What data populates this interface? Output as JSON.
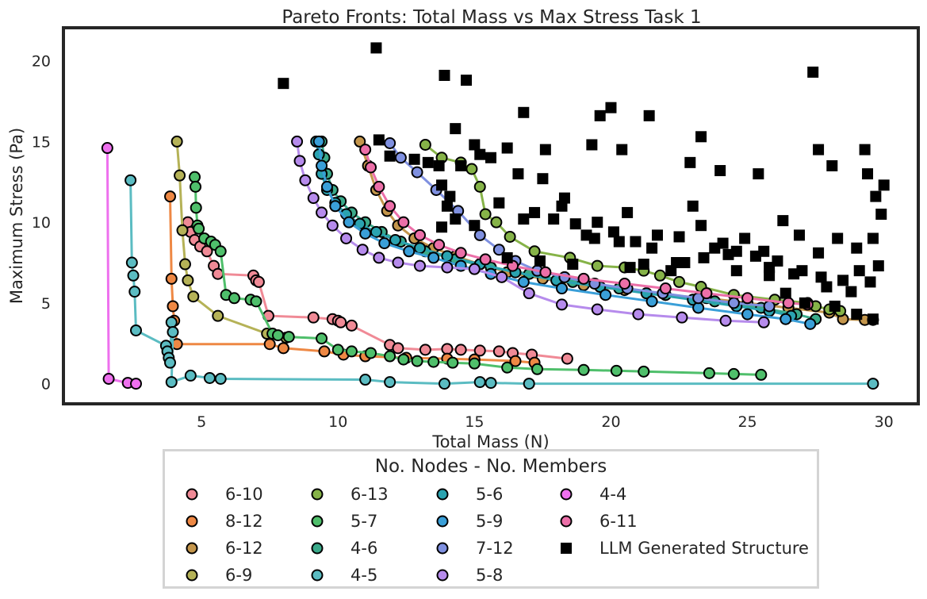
{
  "chart_data": {
    "type": "scatter",
    "title": "Pareto Fronts: Total Mass vs Max Stress Task 1",
    "xlabel": "Total Mass (N)",
    "ylabel": "Maximum Stress (Pa)",
    "xlim": [
      0.0,
      31.2
    ],
    "ylim": [
      -1.15,
      21.95
    ],
    "xticks": [
      5,
      10,
      15,
      20,
      25,
      30
    ],
    "yticks": [
      0,
      5,
      10,
      15,
      20
    ],
    "grid": false,
    "legend_title": "No. Nodes - No. Members",
    "legend_position": "below",
    "series": [
      {
        "name": "6-10",
        "color": "#f08a96",
        "x": [
          4.5,
          4.6,
          4.75,
          4.95,
          5.2,
          5.45,
          5.6,
          6.9,
          7.0,
          7.1,
          7.45,
          9.1,
          9.8,
          10.0,
          10.1,
          10.5,
          11.9,
          12.2,
          13.2,
          14.0,
          14.5,
          15.2,
          15.9,
          16.4,
          17.1,
          18.4
        ],
        "y": [
          10.0,
          9.4,
          8.9,
          8.5,
          8.2,
          7.3,
          6.8,
          6.7,
          6.4,
          6.3,
          4.2,
          4.1,
          4.0,
          3.9,
          3.8,
          3.6,
          2.4,
          2.2,
          2.1,
          2.15,
          2.1,
          2.05,
          2.0,
          1.9,
          1.8,
          1.55
        ]
      },
      {
        "name": "8-12",
        "color": "#ee8844",
        "x": [
          3.85,
          3.9,
          3.95,
          4.0,
          4.1,
          7.5,
          8.0,
          9.5,
          10.2,
          11.0,
          12.5,
          14.0,
          15.0,
          16.5,
          17.2
        ],
        "y": [
          11.6,
          6.5,
          4.8,
          3.9,
          2.45,
          2.45,
          2.2,
          2.0,
          1.8,
          1.7,
          1.6,
          1.55,
          1.5,
          1.4,
          1.3
        ]
      },
      {
        "name": "6-12",
        "color": "#c4964c",
        "x": [
          10.8,
          11.1,
          11.4,
          11.8,
          12.2,
          12.8,
          13.5,
          14.3,
          15.2,
          16.2,
          17.5,
          19.0,
          20.5,
          22.0,
          23.5,
          25.0,
          26.5,
          28.0,
          28.5,
          29.3,
          29.6
        ],
        "y": [
          15.0,
          13.5,
          12.0,
          10.7,
          9.8,
          9.0,
          8.4,
          7.9,
          7.4,
          6.9,
          6.5,
          6.1,
          5.8,
          5.5,
          5.3,
          5.0,
          4.7,
          4.4,
          4.0,
          3.95,
          3.95
        ]
      },
      {
        "name": "6-9",
        "color": "#b5b257",
        "x": [
          4.1,
          4.2,
          4.3,
          4.4,
          4.5,
          4.7,
          5.6,
          7.4,
          8.1
        ],
        "y": [
          15.0,
          12.9,
          9.5,
          7.4,
          6.4,
          5.4,
          4.2,
          3.1,
          2.85
        ]
      },
      {
        "name": "6-13",
        "color": "#86b348",
        "x": [
          13.2,
          13.8,
          14.5,
          14.9,
          15.2,
          15.4,
          15.8,
          16.3,
          17.2,
          18.5,
          19.5,
          20.5,
          21.2,
          21.8,
          22.5,
          23.3,
          24.5,
          26.0,
          27.2,
          27.5,
          28.0,
          28.4
        ],
        "y": [
          14.8,
          14.0,
          13.7,
          13.3,
          12.2,
          10.5,
          10.0,
          9.1,
          8.2,
          7.8,
          7.3,
          7.2,
          7.0,
          6.7,
          6.3,
          6.0,
          5.5,
          5.2,
          5.0,
          4.8,
          4.6,
          4.5
        ]
      },
      {
        "name": "5-7",
        "color": "#4fbf6b",
        "x": [
          4.75,
          4.78,
          4.8,
          4.85,
          4.9,
          5.1,
          5.35,
          5.5,
          5.7,
          5.9,
          6.2,
          6.8,
          7.0,
          7.6,
          7.8,
          8.2,
          9.4,
          10.0,
          10.5,
          11.2,
          11.9,
          12.4,
          12.9,
          13.5,
          14.2,
          15.0,
          16.2,
          17.3,
          19.0,
          20.2,
          21.2,
          23.6,
          24.5,
          25.5
        ],
        "y": [
          12.8,
          12.2,
          10.9,
          9.8,
          9.6,
          9.0,
          8.8,
          8.6,
          8.2,
          5.5,
          5.3,
          5.2,
          5.1,
          3.1,
          3.0,
          2.9,
          2.8,
          2.1,
          2.0,
          1.9,
          1.7,
          1.5,
          1.4,
          1.35,
          1.3,
          1.25,
          1.0,
          0.9,
          0.85,
          0.8,
          0.75,
          0.65,
          0.6,
          0.55
        ]
      },
      {
        "name": "4-6",
        "color": "#3aaa8a",
        "x": [
          9.4,
          9.5,
          9.6,
          9.8,
          10.1,
          10.5,
          11.0,
          11.6,
          12.3,
          13.2,
          14.3,
          15.6,
          17.0,
          18.6,
          20.3,
          22.0,
          23.8,
          25.5,
          26.8,
          27.5
        ],
        "y": [
          15.0,
          14.0,
          13.0,
          12.0,
          11.3,
          10.6,
          10.0,
          9.4,
          8.8,
          8.2,
          7.7,
          7.2,
          6.8,
          6.3,
          5.9,
          5.5,
          5.1,
          4.7,
          4.3,
          4.0
        ]
      },
      {
        "name": "4-5",
        "color": "#5bbcc2",
        "x": [
          2.4,
          2.45,
          2.5,
          2.55,
          2.6,
          3.7,
          3.75,
          3.8,
          3.85,
          3.9,
          3.95,
          3.9,
          4.6,
          5.3,
          5.7,
          11.0,
          11.9,
          13.9,
          15.2,
          15.6,
          17.0,
          29.6
        ],
        "y": [
          12.6,
          7.5,
          6.7,
          5.7,
          3.3,
          2.35,
          2.0,
          1.6,
          1.3,
          3.8,
          3.2,
          0.1,
          0.5,
          0.35,
          0.3,
          0.25,
          0.1,
          0.0,
          0.1,
          0.05,
          0.0,
          0.0
        ]
      },
      {
        "name": "5-6",
        "color": "#2aa3b0",
        "x": [
          9.2,
          9.3,
          9.4,
          9.6,
          9.9,
          10.3,
          10.8,
          11.4,
          12.1,
          13.0,
          14.0,
          15.2,
          16.5,
          18.0,
          19.6,
          21.3,
          23.0,
          24.6,
          25.8,
          26.6
        ],
        "y": [
          15.0,
          14.2,
          13.0,
          12.0,
          11.2,
          10.5,
          9.9,
          9.4,
          8.9,
          8.4,
          7.9,
          7.4,
          6.9,
          6.4,
          6.0,
          5.6,
          5.2,
          4.8,
          4.5,
          4.2
        ]
      },
      {
        "name": "5-9",
        "color": "#3a9fd8",
        "x": [
          9.3,
          9.4,
          9.6,
          9.9,
          10.4,
          11.0,
          11.7,
          12.6,
          13.5,
          14.5,
          15.6,
          16.8,
          18.2,
          19.8,
          21.5,
          23.2,
          25.0,
          26.4,
          27.3
        ],
        "y": [
          15.0,
          13.5,
          12.2,
          11.0,
          10.0,
          9.3,
          8.7,
          8.2,
          7.8,
          7.3,
          6.8,
          6.3,
          5.9,
          5.5,
          5.1,
          4.7,
          4.3,
          4.0,
          3.7
        ]
      },
      {
        "name": "4-4",
        "color": "#ee70ee",
        "x": [
          1.55,
          1.6,
          2.3,
          2.6
        ],
        "y": [
          14.6,
          0.3,
          0.05,
          0.0
        ]
      },
      {
        "name": "7-12",
        "color": "#7f90e0",
        "x": [
          11.9,
          12.3,
          12.9,
          13.6,
          14.4,
          15.2,
          15.9,
          16.5,
          17.3,
          18.3,
          19.4,
          20.6,
          21.9,
          23.2,
          24.5,
          25.8
        ],
        "y": [
          14.9,
          14.0,
          13.1,
          12.0,
          10.7,
          9.2,
          8.3,
          7.6,
          7.0,
          6.6,
          6.2,
          5.9,
          5.6,
          5.3,
          5.0,
          4.8
        ]
      },
      {
        "name": "6-11",
        "color": "#ec6fa8",
        "x": [
          11.0,
          11.2,
          11.5,
          11.9,
          12.4,
          13.0,
          13.7,
          14.5,
          15.4,
          16.4,
          17.6,
          19.0,
          20.5,
          22.0,
          23.5,
          25.0,
          26.5,
          27.2
        ],
        "y": [
          14.5,
          13.4,
          12.2,
          11.0,
          10.0,
          9.2,
          8.6,
          8.1,
          7.7,
          7.3,
          6.9,
          6.5,
          6.2,
          5.9,
          5.6,
          5.3,
          5.0,
          4.9
        ]
      },
      {
        "name": "5-8",
        "color": "#b68bec",
        "x": [
          8.5,
          8.6,
          8.8,
          9.1,
          9.4,
          9.8,
          10.3,
          10.9,
          11.5,
          12.2,
          13.0,
          14.0,
          15.0,
          16.0,
          17.0,
          18.2,
          19.5,
          21.0,
          22.6,
          24.2,
          25.6
        ],
        "y": [
          15.0,
          13.8,
          12.6,
          11.5,
          10.6,
          9.8,
          9.0,
          8.3,
          7.8,
          7.5,
          7.3,
          7.2,
          7.1,
          6.6,
          5.6,
          4.9,
          4.6,
          4.3,
          4.1,
          3.9,
          3.8
        ]
      },
      {
        "name": "LLM Generated Structure",
        "color": "#000000",
        "marker": "square",
        "x": [
          8.0,
          11.4,
          13.9,
          14.7,
          14.3,
          15.0,
          11.5,
          11.9,
          12.8,
          13.3,
          13.7,
          13.8,
          14.1,
          14.0,
          14.5,
          15.2,
          15.6,
          16.2,
          16.6,
          16.8,
          17.6,
          17.5,
          18.3,
          18.2,
          19.3,
          19.6,
          20.0,
          20.4,
          21.4,
          20.6,
          22.9,
          23.3,
          23.0,
          24.0,
          25.4,
          27.4,
          27.6,
          28.1,
          29.3,
          29.4,
          30.0,
          29.7,
          29.9,
          13.8,
          14.3,
          15.0,
          15.9,
          16.8,
          17.2,
          17.9,
          18.7,
          19.5,
          20.1,
          20.9,
          21.7,
          22.5,
          23.3,
          24.1,
          24.9,
          25.6,
          26.3,
          26.9,
          27.6,
          28.3,
          29.0,
          29.6,
          21.5,
          22.4,
          23.8,
          24.6,
          25.3,
          26.1,
          27.0,
          27.7,
          28.5,
          29.1,
          29.8,
          19.1,
          19.4,
          20.3,
          21.2,
          22.2,
          23.4,
          24.6,
          25.8,
          26.7,
          27.9,
          28.8,
          29.5,
          16.2,
          17.4,
          18.6,
          20.7,
          22.7,
          24.3,
          25.8,
          26.4,
          27.1,
          28.2,
          29.0,
          29.6
        ],
        "y": [
          18.6,
          20.8,
          19.1,
          18.8,
          15.8,
          14.8,
          15.1,
          14.1,
          13.9,
          13.7,
          13.5,
          12.3,
          11.6,
          11.0,
          13.5,
          14.2,
          14.0,
          14.6,
          13.0,
          16.8,
          14.5,
          12.7,
          11.5,
          11.0,
          14.8,
          16.6,
          17.1,
          14.5,
          16.6,
          10.6,
          13.7,
          15.3,
          11.0,
          13.2,
          13.0,
          19.3,
          14.5,
          13.5,
          14.5,
          13.0,
          12.3,
          11.6,
          10.5,
          9.7,
          10.2,
          9.8,
          11.2,
          10.2,
          10.6,
          10.2,
          9.9,
          10.0,
          9.4,
          8.8,
          9.2,
          9.1,
          9.8,
          8.7,
          9.0,
          8.2,
          10.1,
          9.2,
          8.1,
          9.0,
          8.4,
          9.0,
          8.4,
          7.5,
          8.4,
          8.2,
          7.9,
          7.6,
          7.0,
          6.6,
          6.4,
          7.0,
          7.3,
          9.2,
          9.0,
          8.8,
          7.4,
          7.0,
          7.8,
          7.0,
          7.2,
          6.8,
          6.0,
          5.7,
          6.3,
          7.8,
          7.6,
          7.4,
          7.2,
          7.5,
          8.0,
          6.7,
          5.6,
          5.0,
          4.8,
          4.3,
          4.0
        ]
      }
    ]
  }
}
